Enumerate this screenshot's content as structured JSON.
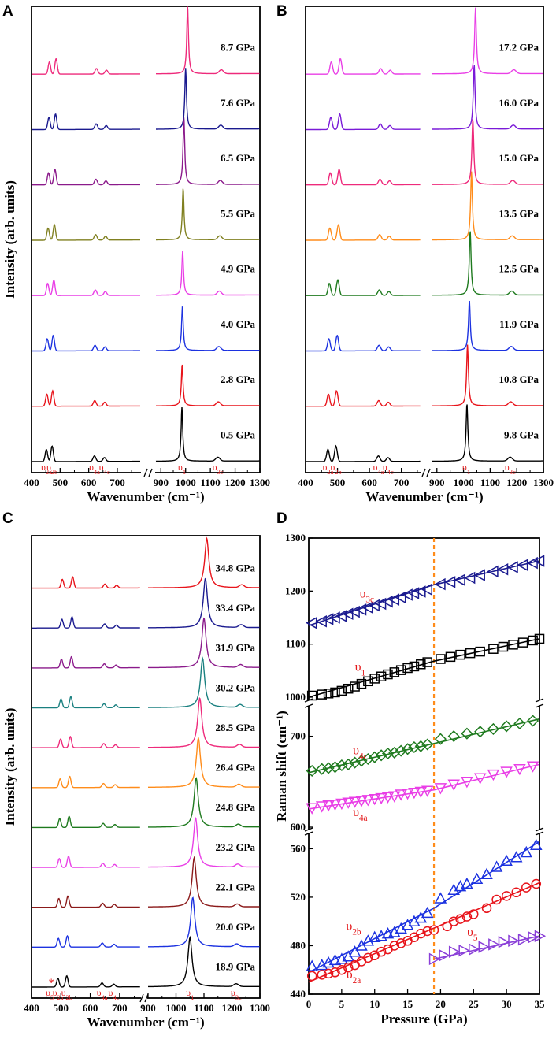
{
  "chart_data": [
    {
      "type": "line",
      "panel": "A",
      "xlabel": "Wavenumber (cm⁻¹)",
      "ylabel": "Intensity (arb. units)",
      "xlim": [
        400,
        1300
      ],
      "xticks": [
        "400",
        "500",
        "600",
        "700",
        "900",
        "1000",
        "1100",
        "1200",
        "1300"
      ],
      "axis_break": "between 780 and 880 cm⁻¹",
      "mode_labels": [
        "υ2a",
        "υ2b",
        "υ4a",
        "υ4c",
        "υ1",
        "υ3c"
      ],
      "mode_positions": [
        452,
        472,
        620,
        655,
        985,
        1130
      ],
      "series": [
        {
          "name": "0.5 GPa",
          "color": "#000000",
          "peak_position": 985,
          "peak_height": 0.75
        },
        {
          "name": "2.8 GPa",
          "color": "#e8141b",
          "peak_position": 986,
          "peak_height": 0.58
        },
        {
          "name": "4.0 GPa",
          "color": "#1c32e0",
          "peak_position": 987,
          "peak_height": 0.62
        },
        {
          "name": "4.9 GPa",
          "color": "#e93fe6",
          "peak_position": 988,
          "peak_height": 0.62
        },
        {
          "name": "5.5 GPa",
          "color": "#808020",
          "peak_position": 990,
          "peak_height": 0.72
        },
        {
          "name": "6.5 GPa",
          "color": "#8b1a8b",
          "peak_position": 993,
          "peak_height": 0.95
        },
        {
          "name": "7.6 GPa",
          "color": "#1a1a8f",
          "peak_position": 1000,
          "peak_height": 0.85
        },
        {
          "name": "8.7 GPa",
          "color": "#ee2a7b",
          "peak_position": 1008,
          "peak_height": 0.95
        }
      ]
    },
    {
      "type": "line",
      "panel": "B",
      "xlabel": "Wavenumber (cm⁻¹)",
      "ylabel": "",
      "xlim": [
        400,
        1300
      ],
      "xticks": [
        "400",
        "500",
        "600",
        "700",
        "900",
        "1000",
        "1100",
        "1200",
        "1300"
      ],
      "axis_break": "between 760 and 880 cm⁻¹",
      "mode_labels": [
        "υ2a",
        "υ2b",
        "υ4a",
        "υ4c",
        "υ1",
        "υ3c"
      ],
      "mode_positions": [
        470,
        495,
        628,
        658,
        1010,
        1175
      ],
      "series": [
        {
          "name": "9.8 GPa",
          "color": "#000000",
          "peak_position": 1013,
          "peak_height": 0.8
        },
        {
          "name": "10.8 GPa",
          "color": "#e8141b",
          "peak_position": 1015,
          "peak_height": 0.85
        },
        {
          "name": "11.9 GPa",
          "color": "#1c32e0",
          "peak_position": 1022,
          "peak_height": 0.7
        },
        {
          "name": "12.5 GPa",
          "color": "#1e7a1e",
          "peak_position": 1025,
          "peak_height": 0.9
        },
        {
          "name": "13.5 GPa",
          "color": "#ff8c1a",
          "peak_position": 1030,
          "peak_height": 0.95
        },
        {
          "name": "15.0 GPa",
          "color": "#ee2a7b",
          "peak_position": 1035,
          "peak_height": 0.92
        },
        {
          "name": "16.0 GPa",
          "color": "#7a1ad8",
          "peak_position": 1040,
          "peak_height": 0.9
        },
        {
          "name": "17.2 GPa",
          "color": "#e93fe6",
          "peak_position": 1045,
          "peak_height": 0.92
        }
      ]
    },
    {
      "type": "line",
      "panel": "C",
      "xlabel": "Wavenumber (cm⁻¹)",
      "ylabel": "Intensity (arb. units)",
      "xlim": [
        400,
        1300
      ],
      "xticks": [
        "400",
        "500",
        "600",
        "700",
        "900",
        "1000",
        "1100",
        "1200",
        "1300"
      ],
      "axis_break": "between 770 and 900 cm⁻¹",
      "mode_labels": [
        "υ5",
        "υ2a",
        "υ2b",
        "υ4a",
        "υ4c",
        "υ1",
        "υ3c"
      ],
      "mode_positions": [
        462,
        490,
        520,
        640,
        680,
        1050,
        1215
      ],
      "asterisk": "*",
      "series": [
        {
          "name": "18.9 GPa",
          "color": "#000000",
          "peak_position": 1050,
          "peak_height": 0.95
        },
        {
          "name": "20.0 GPa",
          "color": "#1c32e0",
          "peak_position": 1060,
          "peak_height": 0.95
        },
        {
          "name": "22.1 GPa",
          "color": "#8b1a1a",
          "peak_position": 1065,
          "peak_height": 0.95
        },
        {
          "name": "23.2 GPa",
          "color": "#e93fe6",
          "peak_position": 1070,
          "peak_height": 0.95
        },
        {
          "name": "24.8 GPa",
          "color": "#1e7a1e",
          "peak_position": 1072,
          "peak_height": 0.95
        },
        {
          "name": "26.4 GPa",
          "color": "#ff8c1a",
          "peak_position": 1080,
          "peak_height": 0.95
        },
        {
          "name": "28.5 GPa",
          "color": "#ee2a7b",
          "peak_position": 1085,
          "peak_height": 0.95
        },
        {
          "name": "30.2 GPa",
          "color": "#1a8080",
          "peak_position": 1095,
          "peak_height": 0.95
        },
        {
          "name": "31.9 GPa",
          "color": "#8b1a8b",
          "peak_position": 1100,
          "peak_height": 0.95
        },
        {
          "name": "33.4 GPa",
          "color": "#1a1a8f",
          "peak_position": 1105,
          "peak_height": 0.95
        },
        {
          "name": "34.8 GPa",
          "color": "#e8141b",
          "peak_position": 1110,
          "peak_height": 0.95
        }
      ]
    },
    {
      "type": "scatter",
      "panel": "D",
      "xlabel": "Pressure (GPa)",
      "ylabel": "Raman shift (cm⁻¹)",
      "xlim": [
        0,
        35
      ],
      "xticks": [
        "0",
        "5",
        "10",
        "15",
        "20",
        "25",
        "30",
        "35"
      ],
      "ylim_segments": [
        [
          440,
          570
        ],
        [
          600,
          730
        ],
        [
          1000,
          1300
        ]
      ],
      "yticks": [
        "440",
        "480",
        "520",
        "560",
        "600",
        "700",
        "1000",
        "1100",
        "1200",
        "1300"
      ],
      "transition_pressure": 19,
      "transition_line_color": "#ff8c1a",
      "series": [
        {
          "name": "υ3c",
          "label_main": "υ",
          "label_sub": "3c",
          "color": "#1a1a8f",
          "marker": "triangle-left",
          "x": [
            0.5,
            2,
            3,
            4,
            5,
            6,
            7,
            8,
            9,
            10,
            11,
            12,
            13,
            14,
            15,
            16,
            17,
            18,
            20,
            21.5,
            23,
            24.5,
            26,
            28,
            29.5,
            31,
            32.5,
            34,
            35
          ],
          "y": [
            1140,
            1143,
            1147,
            1150,
            1153,
            1157,
            1161,
            1165,
            1169,
            1173,
            1176,
            1180,
            1184,
            1188,
            1193,
            1196,
            1199,
            1203,
            1213,
            1217,
            1221,
            1225,
            1230,
            1237,
            1241,
            1245,
            1249,
            1253,
            1257
          ],
          "fit": [
            [
              0,
              1135
            ],
            [
              19,
              1212
            ],
            [
              35,
              1257
            ]
          ]
        },
        {
          "name": "υ1",
          "label_main": "υ",
          "label_sub": "1",
          "color": "#000000",
          "marker": "square",
          "x": [
            0.5,
            2,
            3,
            4,
            5,
            6,
            7,
            8,
            9,
            10,
            11,
            12,
            13,
            14,
            15,
            16,
            17,
            18,
            20,
            21.5,
            23,
            24.5,
            26,
            28,
            29.5,
            31,
            32.5,
            34,
            35
          ],
          "y": [
            1003,
            1005,
            1007,
            1009,
            1012,
            1016,
            1020,
            1025,
            1030,
            1035,
            1039,
            1043,
            1047,
            1051,
            1055,
            1058,
            1062,
            1066,
            1072,
            1076,
            1080,
            1083,
            1086,
            1091,
            1095,
            1099,
            1103,
            1107,
            1110
          ],
          "fit": [
            [
              0,
              1000
            ],
            [
              19,
              1068
            ],
            [
              35,
              1110
            ]
          ]
        },
        {
          "name": "υ4c",
          "label_main": "υ",
          "label_sub": "4c",
          "color": "#1e7a1e",
          "marker": "diamond",
          "x": [
            0.5,
            2,
            3,
            4,
            5,
            6,
            7,
            8,
            9,
            10,
            11,
            12,
            13,
            14,
            15,
            16,
            17,
            18,
            20,
            22,
            24,
            26,
            28,
            30,
            32,
            34
          ],
          "y": [
            662,
            664,
            665,
            666,
            668,
            669,
            671,
            673,
            675,
            677,
            679,
            681,
            682,
            684,
            686,
            688,
            689,
            691,
            697,
            700,
            703,
            705,
            708,
            711,
            714,
            717
          ],
          "fit": [
            [
              0,
              660
            ],
            [
              19,
              692
            ],
            [
              35,
              719
            ]
          ]
        },
        {
          "name": "υ4a",
          "label_main": "υ",
          "label_sub": "4a",
          "color": "#e93fe6",
          "marker": "triangle-down",
          "x": [
            0.5,
            2,
            3,
            4,
            5,
            6,
            7,
            8,
            9,
            10,
            11,
            12,
            13,
            14,
            15,
            16,
            17,
            18,
            20,
            22,
            24,
            26,
            28,
            30,
            32,
            34
          ],
          "y": [
            621,
            623,
            624,
            625,
            626,
            627,
            628,
            629,
            630,
            631,
            632,
            633,
            634,
            636,
            637,
            638,
            639,
            640,
            643,
            647,
            650,
            654,
            658,
            661,
            664,
            667
          ],
          "fit": [
            [
              0,
              620
            ],
            [
              19,
              641
            ],
            [
              35,
              669
            ]
          ]
        },
        {
          "name": "υ2b",
          "label_main": "υ",
          "label_sub": "2b",
          "color": "#1c32e0",
          "marker": "triangle-up",
          "x": [
            0.5,
            2,
            3,
            4,
            5,
            6,
            7,
            8,
            9,
            10,
            11,
            12,
            13,
            14,
            15,
            16,
            17,
            18,
            20,
            22,
            23,
            24,
            25.5,
            27,
            28.5,
            30,
            31.5,
            33,
            34.5
          ],
          "y": [
            463,
            464,
            466,
            468,
            469,
            471,
            475,
            480,
            484,
            487,
            488,
            490,
            491,
            494,
            497,
            500,
            503,
            507,
            519,
            526,
            529,
            531,
            535,
            539,
            545,
            550,
            553,
            557,
            563
          ],
          "fit": [
            [
              0,
              458
            ],
            [
              19,
              511
            ],
            [
              35,
              566
            ]
          ]
        },
        {
          "name": "υ2a",
          "label_main": "υ",
          "label_sub": "2a",
          "color": "#e8141b",
          "marker": "circle",
          "x": [
            0.5,
            2,
            3,
            4,
            5,
            6,
            7,
            8,
            9,
            10,
            11,
            12,
            13,
            14,
            15,
            16,
            17,
            18,
            19,
            21,
            22,
            23,
            24,
            25,
            27,
            28.5,
            30,
            31.5,
            33,
            34.5
          ],
          "y": [
            455,
            456,
            457,
            458,
            460,
            462,
            464,
            467,
            470,
            472,
            475,
            477,
            480,
            482,
            484,
            487,
            490,
            492,
            493,
            496,
            500,
            502,
            504,
            506,
            511,
            518,
            521,
            524,
            528,
            531
          ],
          "fit": [
            [
              0,
              450
            ],
            [
              35,
              532
            ]
          ]
        },
        {
          "name": "υ5",
          "label_main": "υ",
          "label_sub": "5",
          "color": "#8a3fd8",
          "marker": "triangle-right",
          "x": [
            19,
            20.5,
            22,
            23.5,
            25,
            26.5,
            28,
            29.5,
            31,
            32.5,
            34,
            35
          ],
          "y": [
            469,
            472,
            475,
            476,
            477,
            479,
            481,
            483,
            484,
            485,
            487,
            488
          ],
          "fit": [
            [
              19,
              469
            ],
            [
              35,
              488
            ]
          ]
        }
      ]
    }
  ],
  "panels": {
    "A": {
      "letter": "A"
    },
    "B": {
      "letter": "B"
    },
    "C": {
      "letter": "C"
    },
    "D": {
      "letter": "D"
    }
  },
  "asterisk_mark": "*"
}
